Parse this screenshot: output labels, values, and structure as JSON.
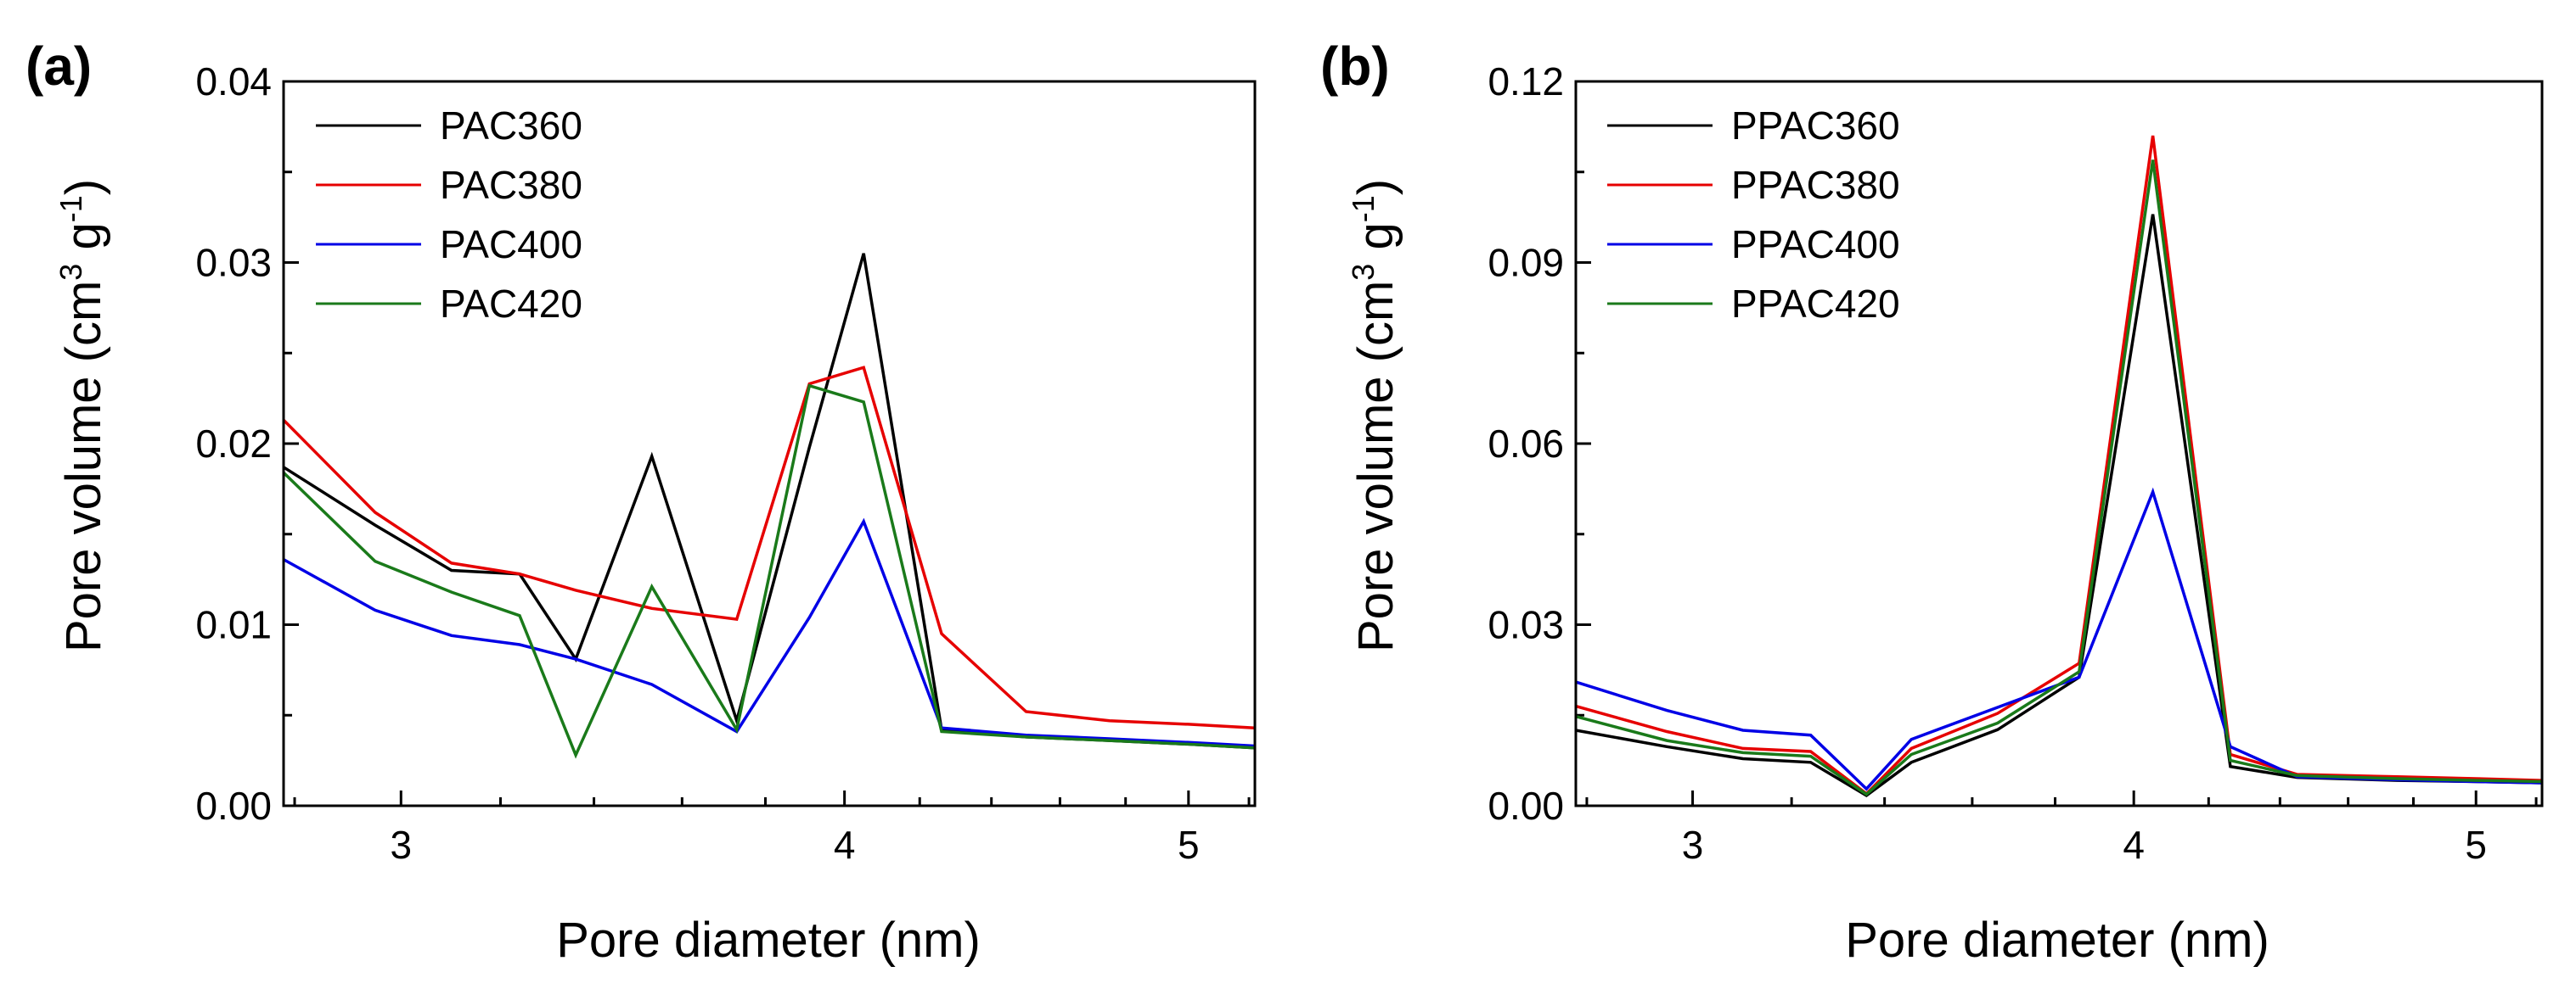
{
  "chart_data": [
    {
      "type": "line",
      "panel_label": "(a)",
      "xlabel": "Pore diameter (nm)",
      "ylabel": "Pore volume (cm³ g⁻¹)",
      "ylabel_parts": {
        "main": "Pore volume (cm",
        "sup1": "3",
        "mid": " g",
        "sup2": "-1",
        "end": ")"
      },
      "xscale": "log",
      "xlim": [
        2.78,
        5.22
      ],
      "ylim": [
        0,
        0.04
      ],
      "xticks": [
        3,
        4,
        5
      ],
      "xtick_labels": [
        "3",
        "4",
        "5"
      ],
      "yticks": [
        0.0,
        0.01,
        0.02,
        0.03,
        0.04
      ],
      "ytick_labels": [
        "0.00",
        "0.01",
        "0.02",
        "0.03",
        "0.04"
      ],
      "legend_position": "top-left",
      "series": [
        {
          "name": "PAC360",
          "color": "#000000",
          "x": [
            2.78,
            2.95,
            3.1,
            3.24,
            3.36,
            3.53,
            3.73,
            3.91,
            4.05,
            4.26,
            4.5,
            4.75,
            5.0,
            5.22
          ],
          "y": [
            0.0187,
            0.0155,
            0.013,
            0.0128,
            0.0081,
            0.0193,
            0.0047,
            0.0198,
            0.0305,
            0.0042,
            0.0038,
            0.0036,
            0.0034,
            0.0032
          ]
        },
        {
          "name": "PAC380",
          "color": "#e60000",
          "x": [
            2.78,
            2.95,
            3.1,
            3.24,
            3.36,
            3.53,
            3.73,
            3.91,
            4.05,
            4.26,
            4.5,
            4.75,
            5.0,
            5.22
          ],
          "y": [
            0.0213,
            0.0162,
            0.0134,
            0.0128,
            0.0119,
            0.0109,
            0.0103,
            0.0233,
            0.0242,
            0.0095,
            0.0052,
            0.0047,
            0.0045,
            0.0043
          ]
        },
        {
          "name": "PAC400",
          "color": "#0000e6",
          "x": [
            2.78,
            2.95,
            3.1,
            3.24,
            3.36,
            3.53,
            3.73,
            3.91,
            4.05,
            4.26,
            4.5,
            4.75,
            5.0,
            5.22
          ],
          "y": [
            0.0136,
            0.0108,
            0.0094,
            0.0089,
            0.0081,
            0.0067,
            0.0041,
            0.0104,
            0.0157,
            0.0043,
            0.0039,
            0.0037,
            0.0035,
            0.0033
          ]
        },
        {
          "name": "PAC420",
          "color": "#1a7a1a",
          "x": [
            2.78,
            2.95,
            3.1,
            3.24,
            3.36,
            3.53,
            3.73,
            3.91,
            4.05,
            4.26,
            4.5,
            4.75,
            5.0,
            5.22
          ],
          "y": [
            0.0184,
            0.0135,
            0.0118,
            0.0105,
            0.0028,
            0.0121,
            0.0042,
            0.0232,
            0.0223,
            0.0041,
            0.0038,
            0.0036,
            0.0034,
            0.0032
          ]
        }
      ]
    },
    {
      "type": "line",
      "panel_label": "(b)",
      "xlabel": "Pore diameter (nm)",
      "ylabel": "Pore volume (cm³ g⁻¹)",
      "ylabel_parts": {
        "main": "Pore volume (cm",
        "sup1": "3",
        "mid": " g",
        "sup2": "-1",
        "end": ")"
      },
      "xscale": "log",
      "xlim": [
        2.78,
        5.22
      ],
      "ylim": [
        0,
        0.12
      ],
      "xticks": [
        3,
        4,
        5
      ],
      "xtick_labels": [
        "3",
        "4",
        "5"
      ],
      "yticks": [
        0.0,
        0.03,
        0.06,
        0.09,
        0.12
      ],
      "ytick_labels": [
        "0.00",
        "0.03",
        "0.06",
        "0.09",
        "0.12"
      ],
      "legend_position": "top-left",
      "series": [
        {
          "name": "PPAC360",
          "color": "#000000",
          "x": [
            2.78,
            2.95,
            3.1,
            3.24,
            3.36,
            3.46,
            3.66,
            3.86,
            4.05,
            4.26,
            4.45,
            4.75,
            5.0,
            5.22
          ],
          "y": [
            0.0125,
            0.0098,
            0.0078,
            0.0072,
            0.0017,
            0.0072,
            0.0126,
            0.0213,
            0.098,
            0.0065,
            0.0047,
            0.0042,
            0.004,
            0.0038
          ]
        },
        {
          "name": "PPAC380",
          "color": "#e60000",
          "x": [
            2.78,
            2.95,
            3.1,
            3.24,
            3.36,
            3.46,
            3.66,
            3.86,
            4.05,
            4.26,
            4.45,
            4.75,
            5.0,
            5.22
          ],
          "y": [
            0.0165,
            0.0123,
            0.0095,
            0.009,
            0.002,
            0.0095,
            0.0153,
            0.0236,
            0.111,
            0.0085,
            0.0052,
            0.0048,
            0.0045,
            0.0042
          ]
        },
        {
          "name": "PPAC400",
          "color": "#0000e6",
          "x": [
            2.78,
            2.95,
            3.1,
            3.24,
            3.36,
            3.46,
            3.66,
            3.86,
            4.05,
            4.26,
            4.45,
            4.75,
            5.0,
            5.22
          ],
          "y": [
            0.0205,
            0.0158,
            0.0125,
            0.0117,
            0.0028,
            0.011,
            0.0163,
            0.0213,
            0.052,
            0.0098,
            0.0048,
            0.0043,
            0.004,
            0.0038
          ]
        },
        {
          "name": "PPAC420",
          "color": "#1a7a1a",
          "x": [
            2.78,
            2.95,
            3.1,
            3.24,
            3.36,
            3.46,
            3.66,
            3.86,
            4.05,
            4.26,
            4.45,
            4.75,
            5.0,
            5.22
          ],
          "y": [
            0.0148,
            0.0108,
            0.0088,
            0.0082,
            0.0019,
            0.0085,
            0.0137,
            0.0222,
            0.107,
            0.0075,
            0.005,
            0.0045,
            0.0042,
            0.004
          ]
        }
      ]
    }
  ]
}
